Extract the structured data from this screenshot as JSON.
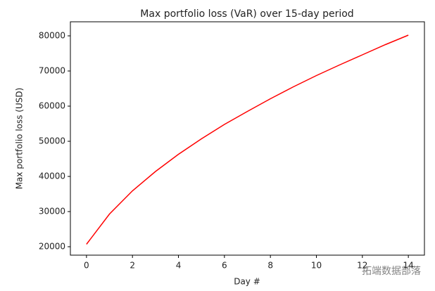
{
  "chart_data": {
    "type": "line",
    "title": "Max portfolio loss (VaR) over 15-day period",
    "x_label": "Day #",
    "y_label": "Max portfolio loss (USD)",
    "x": [
      0,
      1,
      2,
      3,
      4,
      5,
      6,
      7,
      8,
      9,
      10,
      11,
      12,
      13,
      14
    ],
    "series": [
      {
        "name": "VaR",
        "color": "#ff0000",
        "values": [
          20700,
          29300,
          35900,
          41400,
          46300,
          50700,
          54800,
          58500,
          62100,
          65500,
          68700,
          71700,
          74600,
          77500,
          80200
        ]
      }
    ],
    "xlim": [
      -0.7,
      14.7
    ],
    "xticks": [
      0,
      2,
      4,
      6,
      8,
      10,
      12,
      14
    ],
    "ylim": [
      17600,
      84000
    ],
    "yticks": [
      20000,
      30000,
      40000,
      50000,
      60000,
      70000,
      80000
    ],
    "grid": false,
    "watermark": "拓端数据部落"
  }
}
